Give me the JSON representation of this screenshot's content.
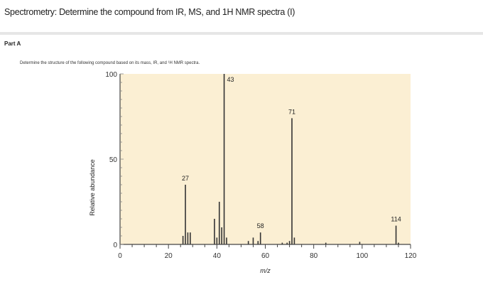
{
  "header": {
    "title": "Spectrometry: Determine the compound from IR, MS, and 1H NMR spectra (I)"
  },
  "part": {
    "label": "Part A",
    "instruction": "Determine the structure of the following compound based on its mass, IR, and ¹H NMR spectra."
  },
  "chart_data": {
    "type": "bar",
    "title": "",
    "xlabel": "m/z",
    "ylabel": "Relative abundance",
    "xlim": [
      0,
      120
    ],
    "ylim": [
      0,
      100
    ],
    "x_ticks": [
      0,
      20,
      40,
      60,
      80,
      100,
      120
    ],
    "y_ticks": [
      0,
      50,
      100
    ],
    "grid": false,
    "background_color": "#fbefd3",
    "bar_color": "#333333",
    "x": [
      26,
      27,
      28,
      29,
      39,
      40,
      41,
      42,
      43,
      44,
      53,
      55,
      57,
      58,
      67,
      69,
      70,
      71,
      72,
      85,
      99,
      114,
      115
    ],
    "values": [
      5,
      35,
      7,
      7,
      15,
      4,
      25,
      10,
      100,
      4,
      2,
      4,
      2,
      7,
      1,
      1,
      2,
      74,
      4,
      1,
      1.5,
      11,
      1
    ],
    "peak_labels": [
      {
        "x": 27,
        "text": "27"
      },
      {
        "x": 43,
        "text": "43"
      },
      {
        "x": 58,
        "text": "58"
      },
      {
        "x": 71,
        "text": "71"
      },
      {
        "x": 114,
        "text": "114"
      }
    ]
  }
}
